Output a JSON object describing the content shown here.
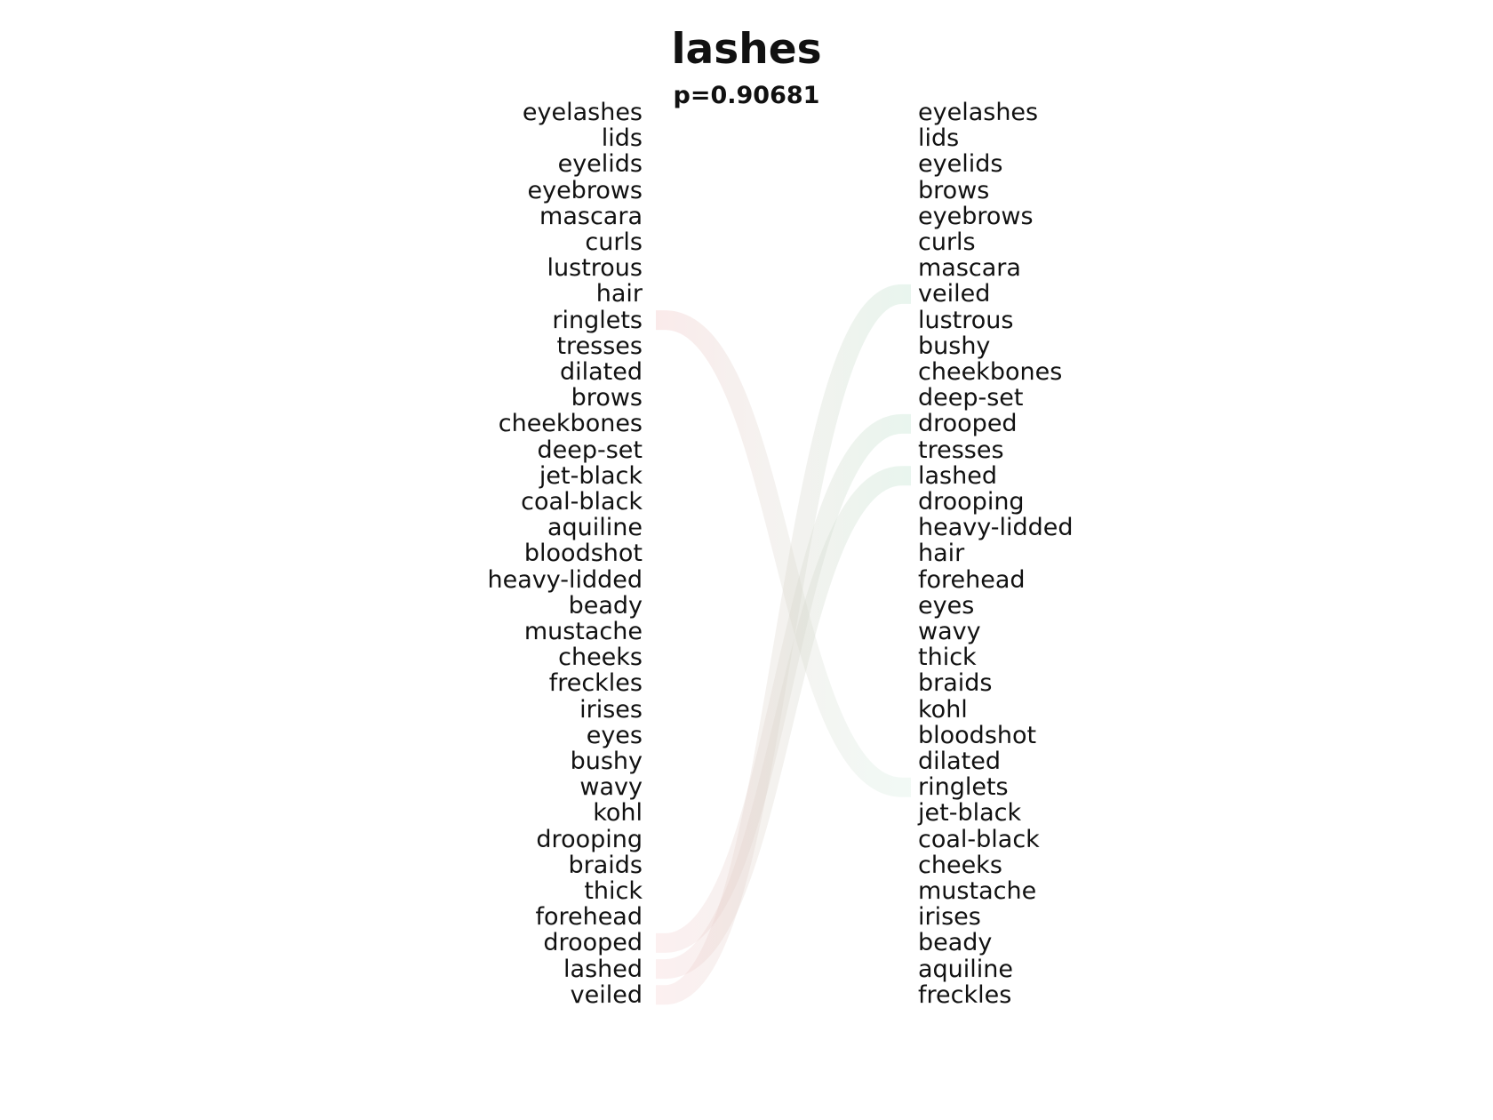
{
  "title": "lashes",
  "subtitle": "p=0.90681",
  "left_words": [
    "eyelashes",
    "lids",
    "eyelids",
    "eyebrows",
    "mascara",
    "curls",
    "lustrous",
    "hair",
    "ringlets",
    "tresses",
    "dilated",
    "brows",
    "cheekbones",
    "deep-set",
    "jet-black",
    "coal-black",
    "aquiline",
    "bloodshot",
    "heavy-lidded",
    "beady",
    "mustache",
    "cheeks",
    "freckles",
    "irises",
    "eyes",
    "bushy",
    "wavy",
    "kohl",
    "drooping",
    "braids",
    "thick",
    "forehead",
    "drooped",
    "lashed",
    "veiled"
  ],
  "right_words": [
    "eyelashes",
    "lids",
    "eyelids",
    "brows",
    "eyebrows",
    "curls",
    "mascara",
    "veiled",
    "lustrous",
    "bushy",
    "cheekbones",
    "deep-set",
    "drooped",
    "tresses",
    "lashed",
    "drooping",
    "heavy-lidded",
    "hair",
    "forehead",
    "eyes",
    "wavy",
    "thick",
    "braids",
    "kohl",
    "bloodshot",
    "dilated",
    "ringlets",
    "jet-black",
    "coal-black",
    "cheeks",
    "mustache",
    "irises",
    "beady",
    "aquiline",
    "freckles"
  ],
  "links": [
    {
      "word": "ringlets",
      "left_index": 8,
      "right_index": 26
    },
    {
      "word": "drooped",
      "left_index": 32,
      "right_index": 12
    },
    {
      "word": "lashed",
      "left_index": 33,
      "right_index": 14
    },
    {
      "word": "veiled",
      "left_index": 34,
      "right_index": 7
    }
  ],
  "colors": {
    "moved_down": "#f2c4c4",
    "moved_up": "#bfe3cf"
  }
}
